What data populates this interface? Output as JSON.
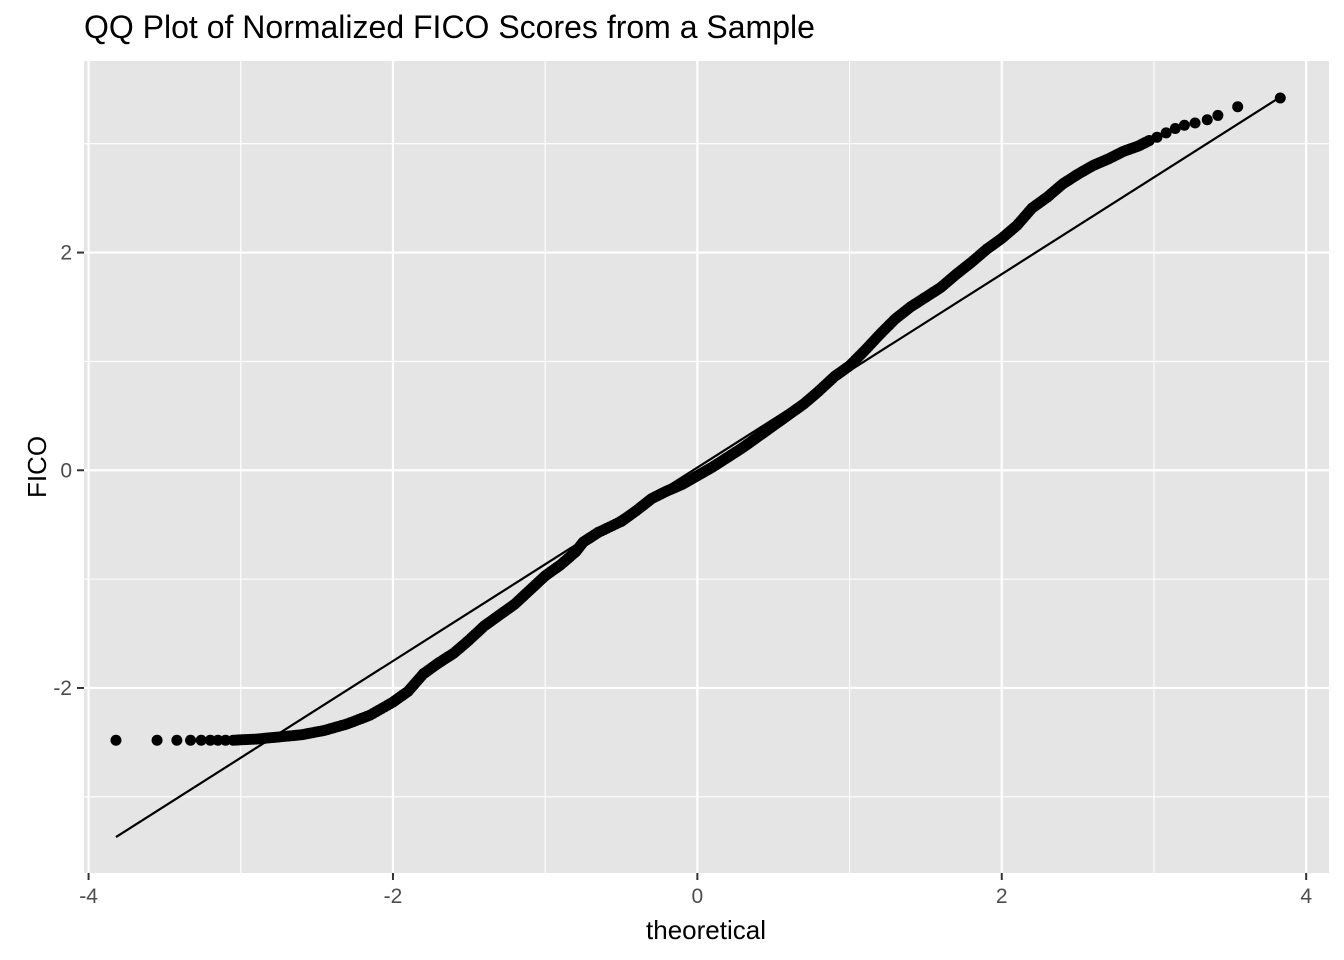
{
  "chart_data": {
    "type": "scatter",
    "title": "QQ Plot of Normalized FICO Scores from a Sample",
    "xlabel": "theoretical",
    "ylabel": "FICO",
    "xlim": [
      -4.03,
      4.15
    ],
    "ylim": [
      -3.7,
      3.76
    ],
    "x_ticks": [
      -4,
      -2,
      0,
      2,
      4
    ],
    "x_tick_labels": [
      "-4",
      "-2",
      "0",
      "2",
      "4"
    ],
    "y_ticks": [
      -2,
      0,
      2
    ],
    "y_tick_labels": [
      "-2",
      "0",
      "2"
    ],
    "grid": true,
    "legend": "none",
    "panel_background": "#e5e5e5",
    "grid_color": "#ffffff",
    "point_color": "#000000",
    "line_color": "#000000",
    "reference_line": {
      "x": [
        -3.82,
        3.82
      ],
      "y": [
        -3.37,
        3.42
      ]
    },
    "isolated_points": [
      {
        "x": -3.82,
        "y": -2.48
      },
      {
        "x": -3.55,
        "y": -2.48
      },
      {
        "x": -3.42,
        "y": -2.48
      },
      {
        "x": -3.33,
        "y": -2.48
      },
      {
        "x": -3.26,
        "y": -2.48
      },
      {
        "x": -3.2,
        "y": -2.48
      },
      {
        "x": -3.15,
        "y": -2.48
      },
      {
        "x": -3.1,
        "y": -2.48
      },
      {
        "x": 3.02,
        "y": 3.06
      },
      {
        "x": 3.08,
        "y": 3.1
      },
      {
        "x": 3.14,
        "y": 3.14
      },
      {
        "x": 3.2,
        "y": 3.17
      },
      {
        "x": 3.27,
        "y": 3.19
      },
      {
        "x": 3.35,
        "y": 3.22
      },
      {
        "x": 3.42,
        "y": 3.26
      },
      {
        "x": 3.55,
        "y": 3.34
      },
      {
        "x": 3.83,
        "y": 3.42
      }
    ],
    "sample_curve": [
      {
        "x": -3.05,
        "y": -2.48
      },
      {
        "x": -2.9,
        "y": -2.47
      },
      {
        "x": -2.75,
        "y": -2.45
      },
      {
        "x": -2.6,
        "y": -2.43
      },
      {
        "x": -2.45,
        "y": -2.39
      },
      {
        "x": -2.3,
        "y": -2.33
      },
      {
        "x": -2.15,
        "y": -2.25
      },
      {
        "x": -2.0,
        "y": -2.13
      },
      {
        "x": -1.9,
        "y": -2.03
      },
      {
        "x": -1.8,
        "y": -1.87
      },
      {
        "x": -1.7,
        "y": -1.77
      },
      {
        "x": -1.6,
        "y": -1.68
      },
      {
        "x": -1.5,
        "y": -1.56
      },
      {
        "x": -1.4,
        "y": -1.43
      },
      {
        "x": -1.3,
        "y": -1.33
      },
      {
        "x": -1.2,
        "y": -1.23
      },
      {
        "x": -1.1,
        "y": -1.1
      },
      {
        "x": -1.0,
        "y": -0.97
      },
      {
        "x": -0.9,
        "y": -0.87
      },
      {
        "x": -0.8,
        "y": -0.75
      },
      {
        "x": -0.75,
        "y": -0.66
      },
      {
        "x": -0.65,
        "y": -0.57
      },
      {
        "x": -0.5,
        "y": -0.47
      },
      {
        "x": -0.4,
        "y": -0.37
      },
      {
        "x": -0.3,
        "y": -0.26
      },
      {
        "x": -0.2,
        "y": -0.19
      },
      {
        "x": -0.1,
        "y": -0.13
      },
      {
        "x": 0.0,
        "y": -0.05
      },
      {
        "x": 0.1,
        "y": 0.03
      },
      {
        "x": 0.2,
        "y": 0.12
      },
      {
        "x": 0.3,
        "y": 0.21
      },
      {
        "x": 0.4,
        "y": 0.31
      },
      {
        "x": 0.5,
        "y": 0.41
      },
      {
        "x": 0.6,
        "y": 0.51
      },
      {
        "x": 0.7,
        "y": 0.61
      },
      {
        "x": 0.8,
        "y": 0.73
      },
      {
        "x": 0.9,
        "y": 0.86
      },
      {
        "x": 1.0,
        "y": 0.96
      },
      {
        "x": 1.1,
        "y": 1.1
      },
      {
        "x": 1.2,
        "y": 1.25
      },
      {
        "x": 1.3,
        "y": 1.39
      },
      {
        "x": 1.4,
        "y": 1.5
      },
      {
        "x": 1.5,
        "y": 1.59
      },
      {
        "x": 1.6,
        "y": 1.68
      },
      {
        "x": 1.7,
        "y": 1.8
      },
      {
        "x": 1.8,
        "y": 1.91
      },
      {
        "x": 1.9,
        "y": 2.03
      },
      {
        "x": 2.0,
        "y": 2.13
      },
      {
        "x": 2.1,
        "y": 2.25
      },
      {
        "x": 2.2,
        "y": 2.41
      },
      {
        "x": 2.3,
        "y": 2.51
      },
      {
        "x": 2.4,
        "y": 2.63
      },
      {
        "x": 2.5,
        "y": 2.72
      },
      {
        "x": 2.6,
        "y": 2.8
      },
      {
        "x": 2.7,
        "y": 2.86
      },
      {
        "x": 2.8,
        "y": 2.93
      },
      {
        "x": 2.9,
        "y": 2.98
      },
      {
        "x": 2.97,
        "y": 3.03
      }
    ]
  }
}
